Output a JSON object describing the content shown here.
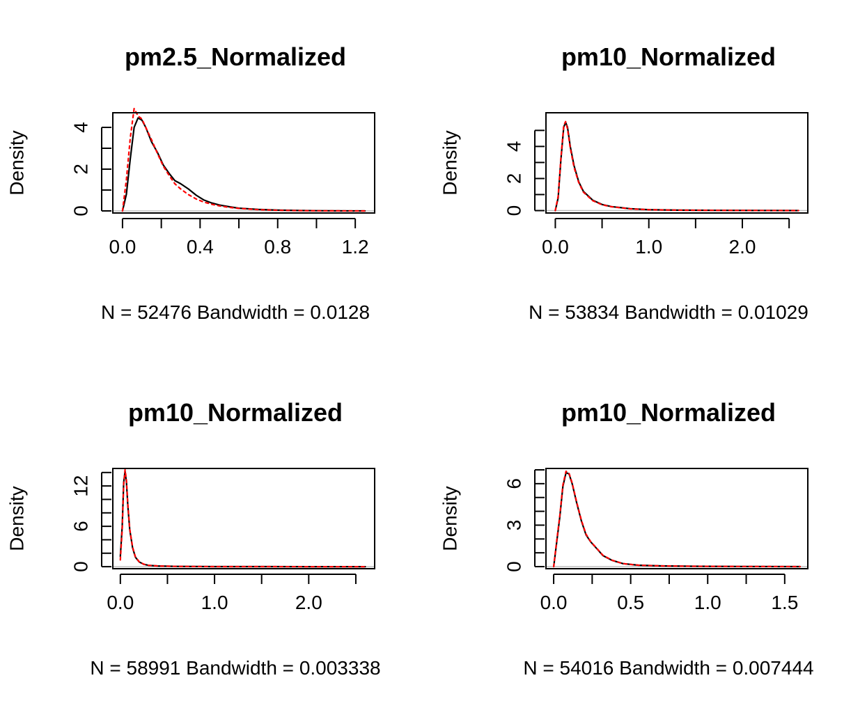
{
  "colors": {
    "kde_line": "#000000",
    "reference_line": "#ff0000",
    "baseline": "#bebebe"
  },
  "chart_data": [
    {
      "type": "line",
      "title": "pm2.5_Normalized",
      "xlabel": "N = 52476   Bandwidth = 0.0128",
      "ylabel": "Density",
      "xlim": [
        -0.05,
        1.3
      ],
      "ylim": [
        -0.1,
        4.7
      ],
      "xticks": [
        0.0,
        0.2,
        0.4,
        0.6,
        0.8,
        1.0,
        1.2
      ],
      "xtick_labels": [
        "0.0",
        "",
        "0.4",
        "",
        "0.8",
        "",
        "1.2"
      ],
      "yticks": [
        0,
        1,
        2,
        3,
        4
      ],
      "ytick_labels": [
        "0",
        "",
        "2",
        "",
        "4"
      ],
      "series": [
        {
          "style": "solid",
          "color": "#000000",
          "x": [
            0.0,
            0.02,
            0.04,
            0.06,
            0.08,
            0.1,
            0.12,
            0.15,
            0.18,
            0.21,
            0.24,
            0.27,
            0.3,
            0.34,
            0.38,
            0.42,
            0.46,
            0.5,
            0.55,
            0.6,
            0.7,
            0.8,
            0.9,
            1.0,
            1.1,
            1.25
          ],
          "y": [
            0.0,
            0.8,
            2.5,
            4.0,
            4.45,
            4.35,
            4.0,
            3.3,
            2.8,
            2.2,
            1.8,
            1.45,
            1.3,
            1.05,
            0.75,
            0.52,
            0.38,
            0.28,
            0.2,
            0.13,
            0.07,
            0.04,
            0.02,
            0.01,
            0.005,
            0.0
          ]
        },
        {
          "style": "dashed",
          "color": "#ff0000",
          "x": [
            0.0,
            0.02,
            0.04,
            0.06,
            0.08,
            0.1,
            0.12,
            0.15,
            0.18,
            0.21,
            0.24,
            0.27,
            0.3,
            0.34,
            0.38,
            0.42,
            0.46,
            0.5,
            0.55,
            0.6,
            0.7,
            0.8,
            0.9,
            1.0,
            1.1,
            1.25
          ],
          "y": [
            0.0,
            1.5,
            3.5,
            4.9,
            4.55,
            4.4,
            4.0,
            3.4,
            2.75,
            2.15,
            1.7,
            1.3,
            1.05,
            0.78,
            0.57,
            0.42,
            0.32,
            0.24,
            0.17,
            0.12,
            0.06,
            0.03,
            0.015,
            0.008,
            0.004,
            0.0
          ]
        }
      ]
    },
    {
      "type": "line",
      "title": "pm10_Normalized",
      "xlabel": "N = 53834   Bandwidth = 0.01029",
      "ylabel": "Density",
      "xlim": [
        -0.1,
        2.7
      ],
      "ylim": [
        -0.15,
        6.1
      ],
      "xticks": [
        0.0,
        0.5,
        1.0,
        1.5,
        2.0,
        2.5
      ],
      "xtick_labels": [
        "0.0",
        "",
        "1.0",
        "",
        "2.0",
        ""
      ],
      "yticks": [
        0,
        1,
        2,
        3,
        4,
        5
      ],
      "ytick_labels": [
        "0",
        "",
        "2",
        "",
        "4",
        ""
      ],
      "series": [
        {
          "style": "solid",
          "color": "#000000",
          "x": [
            0.0,
            0.03,
            0.06,
            0.09,
            0.11,
            0.13,
            0.16,
            0.2,
            0.25,
            0.3,
            0.4,
            0.5,
            0.6,
            0.8,
            1.0,
            1.3,
            1.7,
            2.1,
            2.6
          ],
          "y": [
            0.0,
            0.8,
            3.2,
            5.2,
            5.5,
            5.2,
            4.0,
            2.8,
            1.8,
            1.2,
            0.65,
            0.38,
            0.25,
            0.12,
            0.06,
            0.03,
            0.015,
            0.008,
            0.0
          ]
        },
        {
          "style": "dashed",
          "color": "#ff0000",
          "x": [
            0.0,
            0.03,
            0.06,
            0.09,
            0.11,
            0.13,
            0.16,
            0.2,
            0.25,
            0.3,
            0.4,
            0.5,
            0.6,
            0.8,
            1.0,
            1.3,
            1.7,
            2.1,
            2.6
          ],
          "y": [
            0.0,
            0.9,
            3.3,
            5.3,
            5.55,
            5.1,
            3.9,
            2.7,
            1.75,
            1.15,
            0.62,
            0.36,
            0.24,
            0.11,
            0.055,
            0.028,
            0.014,
            0.007,
            0.0
          ]
        }
      ]
    },
    {
      "type": "line",
      "title": "pm10_Normalized",
      "xlabel": "N = 58991   Bandwidth = 0.003338",
      "ylabel": "Density",
      "xlim": [
        -0.08,
        2.7
      ],
      "ylim": [
        -0.3,
        14.6
      ],
      "xticks": [
        0.0,
        0.5,
        1.0,
        1.5,
        2.0,
        2.5
      ],
      "xtick_labels": [
        "0.0",
        "",
        "1.0",
        "",
        "2.0",
        ""
      ],
      "yticks": [
        0,
        2,
        4,
        6,
        8,
        10,
        12,
        14
      ],
      "ytick_labels": [
        "0",
        "",
        "",
        "6",
        "",
        "",
        "12",
        ""
      ],
      "series": [
        {
          "style": "solid",
          "color": "#000000",
          "x": [
            0.0,
            0.02,
            0.035,
            0.05,
            0.065,
            0.08,
            0.1,
            0.13,
            0.16,
            0.2,
            0.25,
            0.3,
            0.4,
            0.6,
            1.0,
            1.5,
            2.0,
            2.6
          ],
          "y": [
            1.5,
            6.0,
            12.5,
            14.2,
            12.5,
            9.0,
            5.5,
            2.8,
            1.4,
            0.7,
            0.35,
            0.2,
            0.1,
            0.04,
            0.015,
            0.008,
            0.004,
            0.0
          ]
        },
        {
          "style": "dashed",
          "color": "#ff0000",
          "x": [
            0.0,
            0.02,
            0.035,
            0.05,
            0.065,
            0.08,
            0.1,
            0.13,
            0.16,
            0.2,
            0.25,
            0.3,
            0.4,
            0.6,
            1.0,
            1.5,
            2.0,
            2.6
          ],
          "y": [
            1.0,
            5.5,
            12.2,
            14.4,
            12.8,
            9.2,
            5.6,
            2.9,
            1.45,
            0.72,
            0.36,
            0.2,
            0.1,
            0.04,
            0.015,
            0.008,
            0.004,
            0.0
          ]
        }
      ]
    },
    {
      "type": "line",
      "title": "pm10_Normalized",
      "xlabel": "N = 54016   Bandwidth = 0.007444",
      "ylabel": "Density",
      "xlim": [
        -0.05,
        1.65
      ],
      "ylim": [
        -0.15,
        7.1
      ],
      "xticks": [
        0.0,
        0.25,
        0.5,
        0.75,
        1.0,
        1.25,
        1.5
      ],
      "xtick_labels": [
        "0.0",
        "",
        "0.5",
        "",
        "1.0",
        "",
        "1.5"
      ],
      "yticks": [
        0,
        1,
        2,
        3,
        4,
        5,
        6,
        7
      ],
      "ytick_labels": [
        "0",
        "",
        "",
        "3",
        "",
        "",
        "6",
        ""
      ],
      "series": [
        {
          "style": "solid",
          "color": "#000000",
          "x": [
            0.0,
            0.02,
            0.04,
            0.06,
            0.08,
            0.1,
            0.12,
            0.15,
            0.18,
            0.21,
            0.24,
            0.28,
            0.32,
            0.38,
            0.45,
            0.55,
            0.7,
            0.9,
            1.2,
            1.6
          ],
          "y": [
            0.0,
            1.8,
            3.6,
            5.8,
            6.8,
            6.7,
            6.0,
            4.6,
            3.3,
            2.3,
            1.8,
            1.3,
            0.8,
            0.45,
            0.22,
            0.1,
            0.05,
            0.025,
            0.01,
            0.0
          ]
        },
        {
          "style": "dashed",
          "color": "#ff0000",
          "x": [
            0.0,
            0.02,
            0.04,
            0.06,
            0.08,
            0.1,
            0.12,
            0.15,
            0.18,
            0.21,
            0.24,
            0.28,
            0.32,
            0.38,
            0.45,
            0.55,
            0.7,
            0.9,
            1.2,
            1.6
          ],
          "y": [
            0.0,
            1.9,
            3.7,
            5.9,
            6.9,
            6.75,
            6.05,
            4.65,
            3.35,
            2.35,
            1.82,
            1.32,
            0.82,
            0.46,
            0.22,
            0.1,
            0.05,
            0.025,
            0.01,
            0.0
          ]
        }
      ]
    }
  ]
}
